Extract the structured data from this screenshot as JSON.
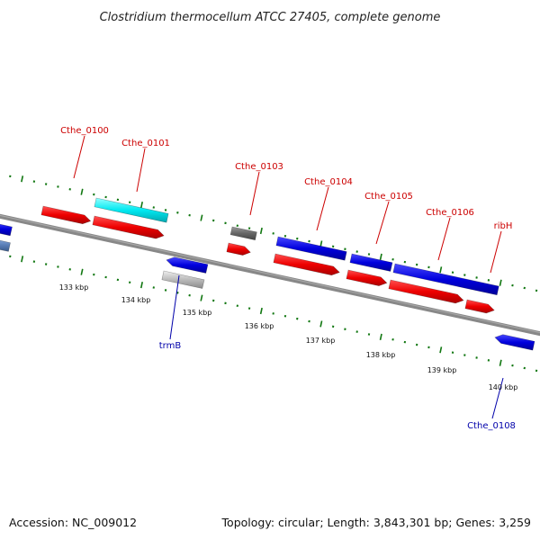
{
  "title": "Clostridium thermocellum ATCC 27405, complete genome",
  "footer": {
    "accession_label": "Accession:",
    "accession": "NC_009012",
    "topology_label": "Topology:",
    "topology": "circular",
    "length_label": "Length:",
    "length": "3,843,301 bp",
    "genes_label": "Genes:",
    "genes": "3,259"
  },
  "colors": {
    "forward_cds": "#ee0000",
    "reverse_cds": "#0000dd",
    "highlight_cds": "#00e8f0",
    "pseudo_gene": "#666666",
    "reverse_pseudo": "#bbbbbb",
    "backbone": "#888888",
    "tick": "#117711",
    "label_forward": "#cc0000",
    "label_reverse": "#0000aa"
  },
  "scale_ticks": [
    "133 kbp",
    "134 kbp",
    "135 kbp",
    "136 kbp",
    "137 kbp",
    "138 kbp",
    "139 kbp",
    "140 kbp"
  ],
  "gene_labels": [
    {
      "text": "Cthe_0100",
      "strand": "forward"
    },
    {
      "text": "Cthe_0101",
      "strand": "forward"
    },
    {
      "text": "Cthe_0103",
      "strand": "forward"
    },
    {
      "text": "Cthe_0104",
      "strand": "forward"
    },
    {
      "text": "Cthe_0105",
      "strand": "forward"
    },
    {
      "text": "Cthe_0106",
      "strand": "forward"
    },
    {
      "text": "ribH",
      "strand": "forward"
    },
    {
      "text": "trmB",
      "strand": "reverse"
    },
    {
      "text": "Cthe_0108",
      "strand": "reverse"
    }
  ]
}
